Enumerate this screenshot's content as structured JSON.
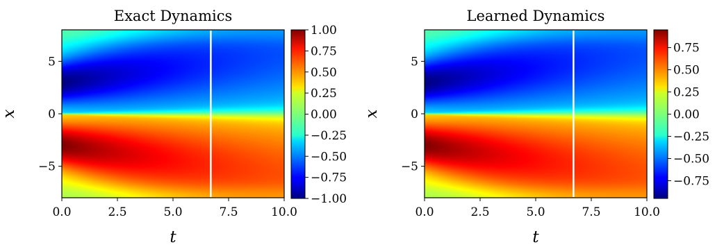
{
  "chart_data": [
    {
      "type": "heatmap",
      "title": "Exact Dynamics",
      "xlabel": "t",
      "ylabel": "x",
      "xlim": [
        0,
        10
      ],
      "ylim": [
        -8,
        8
      ],
      "xticks": [
        "0.0",
        "2.5",
        "5.0",
        "7.5",
        "10.0"
      ],
      "yticks": [
        "5",
        "0",
        "−5"
      ],
      "vertical_line_t": 6.7,
      "vertical_line_color": "#ffffff",
      "colorbar": {
        "colormap": "jet",
        "range": [
          -1.0,
          1.0
        ],
        "ticks": [
          "1.00",
          "0.75",
          "0.50",
          "0.25",
          "0.00",
          "−0.25",
          "−0.50",
          "−0.75",
          "−1.00"
        ]
      }
    },
    {
      "type": "heatmap",
      "title": "Learned Dynamics",
      "xlabel": "t",
      "ylabel": "x",
      "xlim": [
        0,
        10
      ],
      "ylim": [
        -8,
        8
      ],
      "xticks": [
        "0.0",
        "2.5",
        "5.0",
        "7.5",
        "10.0"
      ],
      "yticks": [
        "5",
        "0",
        "−5"
      ],
      "vertical_line_t": 6.7,
      "vertical_line_color": "#ffffff",
      "colorbar": {
        "colormap": "jet",
        "range": [
          -0.95,
          0.95
        ],
        "ticks": [
          "0.75",
          "0.50",
          "0.25",
          "0.00",
          "−0.25",
          "−0.50",
          "−0.75"
        ]
      }
    }
  ]
}
